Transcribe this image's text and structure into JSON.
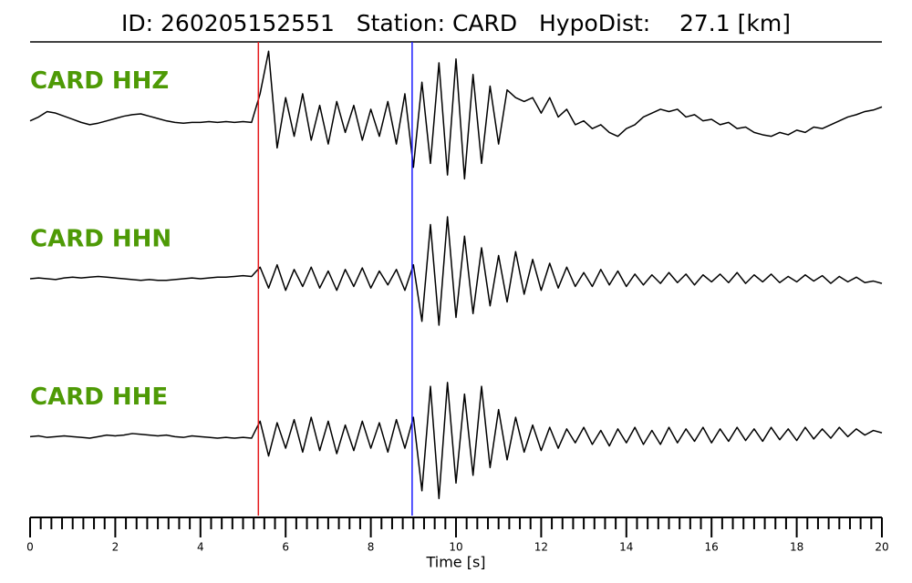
{
  "chart_data": {
    "type": "line",
    "title": "ID: 260205152551   Station: CARD   HypoDist:    27.1 [km]",
    "xlabel": "Time [s]",
    "xlim": [
      0,
      20
    ],
    "xticks": [
      0,
      2,
      4,
      6,
      8,
      10,
      12,
      14,
      16,
      18,
      20
    ],
    "xminorticks": [
      0.25,
      0.5,
      0.75,
      1,
      1.25,
      1.5,
      1.75,
      2.25,
      2.5,
      2.75,
      3,
      3.25,
      3.5,
      3.75,
      4.25,
      4.5,
      4.75,
      5,
      5.25,
      5.5,
      5.75,
      6.25,
      6.5,
      6.75,
      7,
      7.25,
      7.5,
      7.75,
      8.25,
      8.5,
      8.75,
      9,
      9.25,
      9.5,
      9.75,
      10.25,
      10.5,
      10.75,
      11,
      11.25,
      11.5,
      11.75,
      12.25,
      12.5,
      12.75,
      13,
      13.25,
      13.5,
      13.75,
      14.25,
      14.5,
      14.75,
      15,
      15.25,
      15.5,
      15.75,
      16.25,
      16.5,
      16.75,
      17,
      17.25,
      17.5,
      17.75,
      18.25,
      18.5,
      18.75,
      19,
      19.25,
      19.5,
      19.75
    ],
    "ylim": [
      -1,
      1
    ],
    "label_color": "#4e9a06",
    "x": [
      0,
      0.2,
      0.4,
      0.6,
      0.8,
      1,
      1.2,
      1.4,
      1.6,
      1.8,
      2,
      2.2,
      2.4,
      2.6,
      2.8,
      3,
      3.2,
      3.4,
      3.6,
      3.8,
      4,
      4.2,
      4.4,
      4.6,
      4.8,
      5,
      5.2,
      5.4,
      5.6,
      5.8,
      6,
      6.2,
      6.4,
      6.6,
      6.8,
      7,
      7.2,
      7.4,
      7.6,
      7.8,
      8,
      8.2,
      8.4,
      8.6,
      8.8,
      9,
      9.2,
      9.4,
      9.6,
      9.8,
      10,
      10.2,
      10.4,
      10.6,
      10.8,
      11,
      11.2,
      11.4,
      11.6,
      11.8,
      12,
      12.2,
      12.4,
      12.6,
      12.8,
      13,
      13.2,
      13.4,
      13.6,
      13.8,
      14,
      14.2,
      14.4,
      14.6,
      14.8,
      15,
      15.2,
      15.4,
      15.6,
      15.8,
      16,
      16.2,
      16.4,
      16.6,
      16.8,
      17,
      17.2,
      17.4,
      17.6,
      17.8,
      18,
      18.2,
      18.4,
      18.6,
      18.8,
      19,
      19.2,
      19.4,
      19.6,
      19.8,
      20
    ],
    "series": [
      {
        "name": "CARD HHZ",
        "color": "#000000",
        "values": [
          0,
          0.05,
          0.12,
          0.1,
          0.06,
          0.02,
          -0.02,
          -0.05,
          -0.03,
          0,
          0.03,
          0.06,
          0.08,
          0.09,
          0.06,
          0.03,
          0,
          -0.02,
          -0.03,
          -0.02,
          -0.02,
          -0.01,
          -0.02,
          -0.01,
          -0.02,
          -0.01,
          -0.02,
          0.35,
          0.9,
          -0.35,
          0.3,
          -0.2,
          0.35,
          -0.25,
          0.2,
          -0.3,
          0.25,
          -0.15,
          0.2,
          -0.25,
          0.15,
          -0.2,
          0.25,
          -0.3,
          0.35,
          -0.6,
          0.5,
          -0.55,
          0.75,
          -0.7,
          0.8,
          -0.75,
          0.6,
          -0.55,
          0.45,
          -0.3,
          0.4,
          0.3,
          0.25,
          0.3,
          0.1,
          0.3,
          0.05,
          0.15,
          -0.05,
          0,
          -0.1,
          -0.05,
          -0.15,
          -0.2,
          -0.1,
          -0.05,
          0.05,
          0.1,
          0.15,
          0.12,
          0.15,
          0.05,
          0.08,
          0,
          0.02,
          -0.05,
          -0.02,
          -0.1,
          -0.08,
          -0.15,
          -0.18,
          -0.2,
          -0.15,
          -0.18,
          -0.12,
          -0.15,
          -0.08,
          -0.1,
          -0.05,
          0,
          0.05,
          0.08,
          0.12,
          0.14,
          0.18
        ]
      },
      {
        "name": "CARD HHN",
        "color": "#000000",
        "values": [
          0,
          0.01,
          0,
          -0.01,
          0.01,
          0.02,
          0.01,
          0.02,
          0.03,
          0.02,
          0.01,
          0,
          -0.01,
          -0.02,
          -0.01,
          -0.02,
          -0.02,
          -0.01,
          0,
          0.01,
          0,
          0.01,
          0.02,
          0.02,
          0.03,
          0.04,
          0.03,
          0.15,
          -0.12,
          0.18,
          -0.15,
          0.12,
          -0.1,
          0.15,
          -0.12,
          0.1,
          -0.15,
          0.12,
          -0.1,
          0.14,
          -0.12,
          0.1,
          -0.08,
          0.12,
          -0.15,
          0.18,
          -0.55,
          0.7,
          -0.6,
          0.8,
          -0.5,
          0.55,
          -0.45,
          0.4,
          -0.35,
          0.3,
          -0.3,
          0.35,
          -0.2,
          0.25,
          -0.15,
          0.2,
          -0.12,
          0.15,
          -0.1,
          0.08,
          -0.1,
          0.12,
          -0.08,
          0.1,
          -0.1,
          0.06,
          -0.08,
          0.05,
          -0.06,
          0.08,
          -0.05,
          0.06,
          -0.08,
          0.05,
          -0.04,
          0.06,
          -0.05,
          0.08,
          -0.06,
          0.05,
          -0.04,
          0.06,
          -0.05,
          0.03,
          -0.04,
          0.05,
          -0.03,
          0.04,
          -0.06,
          0.03,
          -0.04,
          0.02,
          -0.05,
          -0.03,
          -0.06
        ]
      },
      {
        "name": "CARD HHE",
        "color": "#000000",
        "values": [
          0,
          0.01,
          -0.01,
          0,
          0.01,
          0,
          -0.01,
          -0.02,
          0,
          0.02,
          0.01,
          0.02,
          0.04,
          0.03,
          0.02,
          0.01,
          0.02,
          0,
          -0.01,
          0.01,
          0,
          -0.01,
          -0.02,
          -0.01,
          -0.02,
          -0.01,
          -0.02,
          0.2,
          -0.25,
          0.18,
          -0.15,
          0.22,
          -0.2,
          0.25,
          -0.18,
          0.2,
          -0.22,
          0.15,
          -0.18,
          0.2,
          -0.15,
          0.18,
          -0.2,
          0.22,
          -0.15,
          0.25,
          -0.7,
          0.65,
          -0.8,
          0.7,
          -0.6,
          0.55,
          -0.5,
          0.65,
          -0.4,
          0.35,
          -0.3,
          0.25,
          -0.2,
          0.15,
          -0.18,
          0.12,
          -0.15,
          0.1,
          -0.08,
          0.12,
          -0.1,
          0.08,
          -0.12,
          0.1,
          -0.08,
          0.12,
          -0.1,
          0.08,
          -0.1,
          0.12,
          -0.08,
          0.1,
          -0.06,
          0.12,
          -0.08,
          0.1,
          -0.06,
          0.12,
          -0.05,
          0.1,
          -0.06,
          0.12,
          -0.04,
          0.1,
          -0.05,
          0.12,
          -0.03,
          0.1,
          -0.02,
          0.12,
          0,
          0.1,
          0.02,
          0.08,
          0.05
        ]
      }
    ],
    "markers": [
      {
        "x": 5.36,
        "color": "#e41a1c"
      },
      {
        "x": 8.97,
        "color": "#1a1aff"
      }
    ]
  }
}
